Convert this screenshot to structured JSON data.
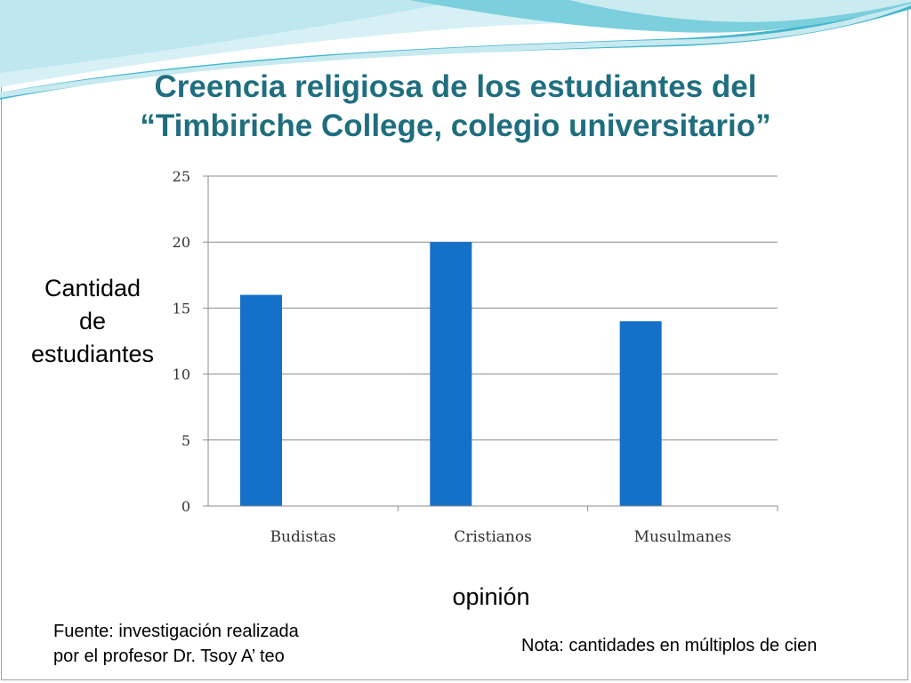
{
  "slide": {
    "title_line1": "Creencia religiosa de los estudiantes del",
    "title_line2": "“Timbiriche College, colegio universitario”",
    "ylabel_line1": "Cantidad",
    "ylabel_line2": "de",
    "ylabel_line3": "estudiantes",
    "xlabel": "opinión",
    "source_line1": "Fuente: investigación realizada",
    "source_line2": "por el profesor Dr. Tsoy  A’ teo",
    "note": "Nota: cantidades en múltiplos de cien"
  },
  "colors": {
    "bar": "#1470c8",
    "title": "#1f6e7f",
    "grid": "#8c8c8c",
    "wave_dark": "#3fb3c9",
    "wave_light": "#a9dde7"
  },
  "chart_data": {
    "type": "bar",
    "title": "Creencia religiosa de los estudiantes del “Timbiriche College, colegio universitario”",
    "categories": [
      "Budistas",
      "Cristianos",
      "Musulmanes"
    ],
    "values": [
      16,
      20,
      14
    ],
    "yticks": [
      "0",
      "5",
      "10",
      "15",
      "20",
      "25"
    ],
    "ylim": [
      0,
      25
    ],
    "ylabel": "Cantidad de estudiantes",
    "xlabel": "opinión",
    "grid": true,
    "legend": "none"
  }
}
